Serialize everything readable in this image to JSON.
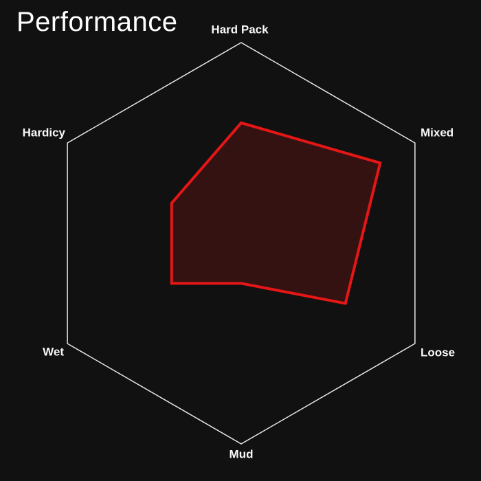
{
  "chart_data": {
    "type": "radar",
    "title": "Performance",
    "categories": [
      "Hard Pack",
      "Mixed",
      "Loose",
      "Mud",
      "Wet",
      "Hardicy"
    ],
    "values": [
      3,
      4,
      3,
      1,
      2,
      2
    ],
    "scale": {
      "min": 0,
      "max": 5
    },
    "start": "top",
    "direction": "clockwise",
    "grid": {
      "style": "outer-hexagon-only",
      "rings": 1,
      "spokes": false
    },
    "legend": "none",
    "colors": {
      "background": "#111111",
      "grid_line": "#e9e9e9",
      "label_text": "#f7f7f7",
      "title_text": "#ffffff",
      "series_stroke": "#e51616",
      "series_fill": "rgba(229,22,22,0.17)"
    }
  }
}
